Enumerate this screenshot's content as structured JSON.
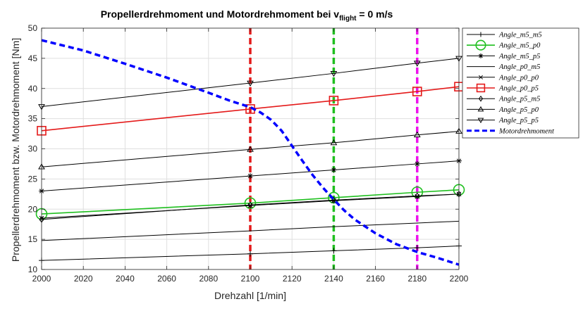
{
  "chart_data": {
    "type": "line",
    "title": {
      "main": "Propellerdrehmoment und Motordrehmoment bei v",
      "subscript": "flight",
      "suffix": " = 0 m/s"
    },
    "xlabel": "Drehzahl [1/min]",
    "ylabel": "Propellerdrehmoment bzw. Motordrehmoment [Nm]",
    "xlim": [
      2000,
      2200
    ],
    "ylim": [
      10,
      50
    ],
    "xticks": [
      2000,
      2020,
      2040,
      2060,
      2080,
      2100,
      2120,
      2140,
      2160,
      2180,
      2200
    ],
    "yticks": [
      10,
      15,
      20,
      25,
      30,
      35,
      40,
      45,
      50
    ],
    "grid": true,
    "legend_position": "outside-right-top",
    "x": [
      2000,
      2100,
      2140,
      2180,
      2200
    ],
    "series": [
      {
        "name": "Angle_m5_m5",
        "legend_text": "Angle_m5_m5",
        "color": "#000000",
        "marker": "plus",
        "width": 1,
        "values": [
          11.5,
          12.6,
          13.1,
          13.6,
          13.9
        ]
      },
      {
        "name": "Angle_m5_p0",
        "legend_text": "Angle_m5_p0",
        "color": "#1fbf1f",
        "marker": "circle",
        "width": 1.6,
        "values": [
          19.2,
          21.0,
          21.9,
          22.8,
          23.2
        ]
      },
      {
        "name": "Angle_m5_p5",
        "legend_text": "Angle_m5_p5",
        "color": "#000000",
        "marker": "star",
        "width": 1,
        "values": [
          23.0,
          25.5,
          26.5,
          27.5,
          28.0
        ]
      },
      {
        "name": "Angle_p0_m5",
        "legend_text": "Angle_p0_m5",
        "color": "#000000",
        "marker": "none",
        "width": 1,
        "values": [
          14.8,
          16.4,
          17.1,
          17.7,
          18.0
        ]
      },
      {
        "name": "Angle_p0_p0",
        "legend_text": "Angle_p0_p0",
        "color": "#000000",
        "marker": "x",
        "width": 1,
        "values": [
          18.5,
          20.6,
          21.4,
          22.1,
          22.5
        ]
      },
      {
        "name": "Angle_p0_p5",
        "legend_text": "Angle_p0_p5",
        "color": "#e41a1a",
        "marker": "square",
        "width": 1.6,
        "values": [
          33.0,
          36.6,
          38.0,
          39.5,
          40.3
        ]
      },
      {
        "name": "Angle_p5_m5",
        "legend_text": "Angle_p5_m5",
        "color": "#000000",
        "marker": "diamond",
        "width": 1,
        "values": [
          18.3,
          20.7,
          21.5,
          22.2,
          22.5
        ]
      },
      {
        "name": "Angle_p5_p0",
        "legend_text": "Angle_p5_p0",
        "color": "#000000",
        "marker": "triangle-up",
        "width": 1,
        "values": [
          27.0,
          29.9,
          31.0,
          32.3,
          32.9
        ]
      },
      {
        "name": "Angle_p5_p5",
        "legend_text": "Angle_p5_p5",
        "color": "#000000",
        "marker": "triangle-down",
        "width": 1,
        "values": [
          37.0,
          40.9,
          42.5,
          44.2,
          45.0
        ]
      }
    ],
    "motor_curve": {
      "name": "Motordrehmoment",
      "legend_text": "Motordrehmoment",
      "color": "#0000ff",
      "style": "dashed",
      "x": [
        2000,
        2020,
        2040,
        2060,
        2080,
        2090,
        2100,
        2105,
        2110,
        2115,
        2120,
        2125,
        2130,
        2135,
        2140,
        2145,
        2150,
        2160,
        2170,
        2180,
        2190,
        2200
      ],
      "values": [
        48.0,
        46.3,
        44.1,
        41.8,
        39.3,
        38.0,
        36.9,
        36.0,
        34.8,
        33.0,
        30.5,
        28.0,
        25.6,
        23.5,
        21.6,
        19.8,
        18.3,
        16.0,
        14.2,
        12.9,
        11.9,
        10.8
      ]
    },
    "vlines": [
      {
        "x": 2100,
        "color": "#e41a1a"
      },
      {
        "x": 2140,
        "color": "#1fbf1f"
      },
      {
        "x": 2180,
        "color": "#ee10ee"
      }
    ]
  }
}
